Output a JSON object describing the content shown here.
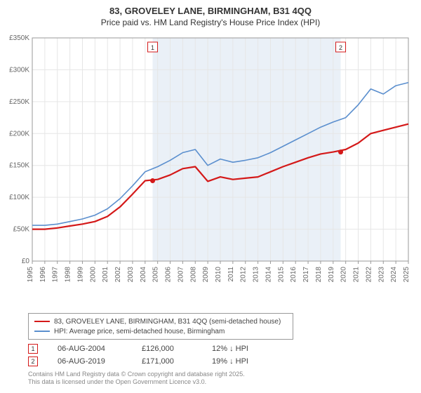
{
  "title_line1": "83, GROVELEY LANE, BIRMINGHAM, B31 4QQ",
  "title_line2": "Price paid vs. HM Land Registry's House Price Index (HPI)",
  "chart": {
    "type": "line",
    "background_color": "#ffffff",
    "shaded_region_color": "#eaf0f7",
    "shaded_region_start_year": 2004.6,
    "shaded_region_end_year": 2019.6,
    "grid_color": "#e6e6e6",
    "axis_color": "#999999",
    "tick_fontsize": 10,
    "tick_color": "#666666",
    "x_years": [
      1995,
      1996,
      1997,
      1998,
      1999,
      2000,
      2001,
      2002,
      2003,
      2004,
      2005,
      2006,
      2007,
      2008,
      2009,
      2010,
      2011,
      2012,
      2013,
      2014,
      2015,
      2016,
      2017,
      2018,
      2019,
      2020,
      2021,
      2022,
      2023,
      2024,
      2025
    ],
    "ylim": [
      0,
      350000
    ],
    "ytick_step": 50000,
    "ytick_labels": [
      "£0",
      "£50K",
      "£100K",
      "£150K",
      "£200K",
      "£250K",
      "£300K",
      "£350K"
    ],
    "series": [
      {
        "name": "price_paid",
        "color": "#d41919",
        "line_width": 2.2,
        "y": [
          50000,
          50000,
          52000,
          55000,
          58000,
          62000,
          70000,
          85000,
          105000,
          126000,
          128000,
          135000,
          145000,
          148000,
          125000,
          132000,
          128000,
          130000,
          132000,
          140000,
          148000,
          155000,
          162000,
          168000,
          171000,
          175000,
          185000,
          200000,
          205000,
          210000,
          215000
        ]
      },
      {
        "name": "hpi",
        "color": "#5b8fce",
        "line_width": 1.6,
        "y": [
          56000,
          56000,
          58000,
          62000,
          66000,
          72000,
          82000,
          98000,
          118000,
          140000,
          148000,
          158000,
          170000,
          175000,
          150000,
          160000,
          155000,
          158000,
          162000,
          170000,
          180000,
          190000,
          200000,
          210000,
          218000,
          225000,
          245000,
          270000,
          262000,
          275000,
          280000
        ]
      }
    ],
    "markers": [
      {
        "label": "1",
        "year": 2004.6,
        "y": 126000,
        "border_color": "#d41919"
      },
      {
        "label": "2",
        "year": 2019.6,
        "y": 171000,
        "border_color": "#d41919"
      }
    ]
  },
  "legend": {
    "items": [
      {
        "color": "#d41919",
        "width": 2.2,
        "text": "83, GROVELEY LANE, BIRMINGHAM, B31 4QQ (semi-detached house)"
      },
      {
        "color": "#5b8fce",
        "width": 1.6,
        "text": "HPI: Average price, semi-detached house, Birmingham"
      }
    ]
  },
  "marker_rows": [
    {
      "label": "1",
      "border_color": "#d41919",
      "date": "06-AUG-2004",
      "price": "£126,000",
      "pct": "12% ↓ HPI"
    },
    {
      "label": "2",
      "border_color": "#d41919",
      "date": "06-AUG-2019",
      "price": "£171,000",
      "pct": "19% ↓ HPI"
    }
  ],
  "attribution_line1": "Contains HM Land Registry data © Crown copyright and database right 2025.",
  "attribution_line2": "This data is licensed under the Open Government Licence v3.0."
}
